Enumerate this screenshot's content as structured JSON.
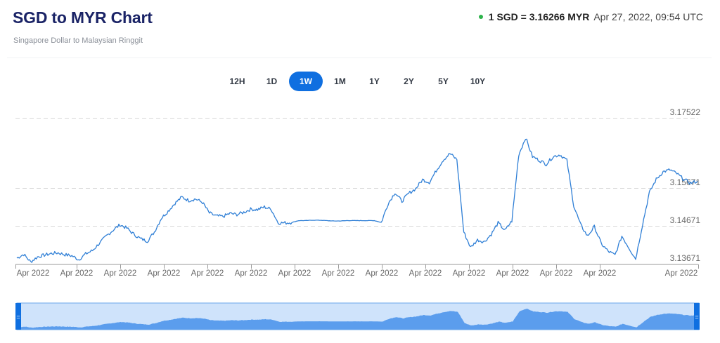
{
  "header": {
    "title": "SGD to MYR Chart",
    "subtitle": "Singapore Dollar to Malaysian Ringgit",
    "rate_text": "1 SGD = 3.16266 MYR",
    "timestamp": "Apr 27, 2022, 09:54 UTC",
    "status_color": "#2db34a"
  },
  "ranges": [
    {
      "label": "12H",
      "active": false
    },
    {
      "label": "1D",
      "active": false
    },
    {
      "label": "1W",
      "active": true
    },
    {
      "label": "1M",
      "active": false
    },
    {
      "label": "1Y",
      "active": false
    },
    {
      "label": "2Y",
      "active": false
    },
    {
      "label": "5Y",
      "active": false
    },
    {
      "label": "10Y",
      "active": false
    }
  ],
  "colors": {
    "line": "#2f7fd6",
    "accent": "#0f6fe0",
    "navigator_bg": "#cfe3fb",
    "navigator_fill": "#5b9ded",
    "grid": "#d8d8d8"
  },
  "chart_data": {
    "type": "line",
    "title": "SGD to MYR Chart",
    "subtitle": "Singapore Dollar to Malaysian Ringgit",
    "xlabel": "",
    "ylabel": "",
    "y_ticks": [
      "3.17522",
      "3.15671",
      "3.14671",
      "3.13671"
    ],
    "y_tick_values": [
      3.17522,
      3.15671,
      3.14671,
      3.13671
    ],
    "ylim": [
      3.13671,
      3.1775
    ],
    "x_tick_labels": [
      "Apr 2022",
      "Apr 2022",
      "Apr 2022",
      "Apr 2022",
      "Apr 2022",
      "Apr 2022",
      "Apr 2022",
      "Apr 2022",
      "Apr 2022",
      "Apr 2022",
      "Apr 2022",
      "Apr 2022",
      "Apr 2022",
      "Apr 2022",
      "Apr 2022"
    ],
    "grid": true,
    "grid_style": "dashed horizontal",
    "legend": "none",
    "series": [
      {
        "name": "SGD/MYR",
        "x": [
          0,
          1,
          2,
          3,
          4,
          5,
          6,
          7,
          8,
          9,
          10,
          11,
          12,
          13,
          14,
          15,
          16,
          17,
          18,
          19,
          20,
          21,
          22,
          23,
          24,
          25,
          26,
          27,
          28,
          29,
          30,
          31,
          32,
          33,
          34,
          35,
          36,
          37,
          38,
          39,
          40,
          41,
          42,
          43,
          44,
          45,
          46,
          47,
          48,
          49,
          50,
          51,
          52,
          53,
          54,
          55,
          56,
          57,
          58,
          59,
          60,
          61,
          62,
          63,
          64,
          65,
          66,
          67,
          68,
          69,
          70,
          71,
          72,
          73,
          74,
          75,
          76,
          77,
          78,
          79,
          80,
          81,
          82,
          83,
          84,
          85,
          86,
          87,
          88,
          89,
          90,
          91,
          92,
          93,
          94,
          95,
          96,
          97,
          98,
          99
        ],
        "values": [
          3.1382,
          3.1392,
          3.1372,
          3.1385,
          3.139,
          3.1394,
          3.1396,
          3.1391,
          3.1388,
          3.1378,
          3.1393,
          3.1402,
          3.1421,
          3.144,
          3.1456,
          3.147,
          3.1461,
          3.1445,
          3.1433,
          3.1427,
          3.1451,
          3.1487,
          3.1506,
          3.1527,
          3.1543,
          3.1534,
          3.1538,
          3.1529,
          3.1501,
          3.1493,
          3.1492,
          3.15,
          3.1497,
          3.1503,
          3.1511,
          3.151,
          3.1517,
          3.1511,
          3.1475,
          3.1475,
          3.1476,
          3.1481,
          3.1481,
          3.1482,
          3.1482,
          3.1481,
          3.148,
          3.148,
          3.1481,
          3.1481,
          3.1481,
          3.1481,
          3.1481,
          3.1476,
          3.1526,
          3.1555,
          3.1532,
          3.1553,
          3.1565,
          3.1589,
          3.1582,
          3.1613,
          3.1641,
          3.1658,
          3.1642,
          3.1451,
          3.141,
          3.143,
          3.1425,
          3.1445,
          3.1475,
          3.1455,
          3.148,
          3.1655,
          3.17,
          3.165,
          3.164,
          3.163,
          3.165,
          3.1655,
          3.164,
          3.152,
          3.147,
          3.144,
          3.1465,
          3.142,
          3.14,
          3.139,
          3.144,
          3.141,
          3.138,
          3.147,
          3.1555,
          3.159,
          3.161,
          3.1615,
          3.1605,
          3.159,
          3.158,
          3.1585
        ]
      }
    ]
  },
  "navigator": {
    "left_handle": "=",
    "right_handle": "="
  }
}
